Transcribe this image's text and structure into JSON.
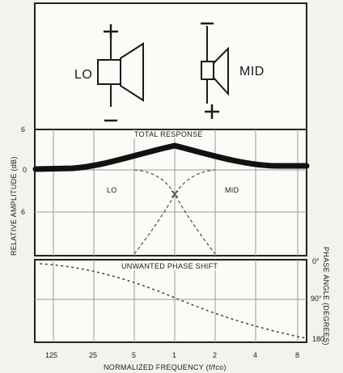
{
  "speakers": {
    "lo": {
      "label": "LO",
      "top_sign": "+",
      "bottom_sign": "—"
    },
    "mid": {
      "label": "MID",
      "top_sign": "—",
      "bottom_sign": "+"
    }
  },
  "amplitude_chart": {
    "title": "TOTAL RESPONSE",
    "ylabel": "RELATIVE AMPLITUDE (dB)",
    "y_ticks": [
      "6",
      "0",
      "6"
    ],
    "curve_labels": [
      "LO",
      "MID"
    ]
  },
  "phase_chart": {
    "title": "UNWANTED PHASE SHIFT",
    "ylabel": "PHASE ANGLE (DEGREES)",
    "y_ticks": [
      "0°",
      "90°",
      "180"
    ]
  },
  "x_axis": {
    "label": "NORMALIZED FREQUENCY (f/fco)",
    "ticks": [
      "125",
      "25",
      "5",
      "1",
      "2",
      "4",
      "8"
    ]
  },
  "colors": {
    "ink": "#1a1a1a",
    "grid": "#9a9a9a",
    "paper": "#fbfbf8"
  }
}
